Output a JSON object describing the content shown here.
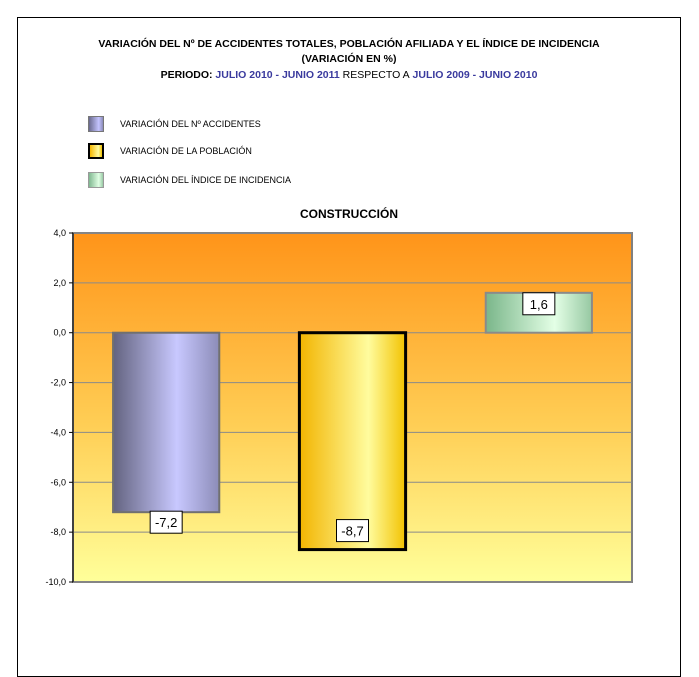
{
  "header": {
    "title_line1": "VARIACIÓN DEL Nº DE ACCIDENTES TOTALES, POBLACIÓN AFILIADA Y EL ÍNDICE DE INCIDENCIA",
    "title_line2": "(VARIACIÓN EN %)",
    "period_label": "PERIODO:",
    "period_current": "JULIO 2010 - JUNIO 2011",
    "period_connector": "RESPECTO A",
    "period_previous": "JULIO 2009 - JUNIO 2010"
  },
  "legend": [
    {
      "label": "VARIACIÓN DEL Nº ACCIDENTES",
      "color": "#a0a0e0"
    },
    {
      "label": "VARIACIÓN DE LA POBLACIÓN",
      "color": "#f5cf2a"
    },
    {
      "label": "VARIACIÓN DEL ÍNDICE DE  INCIDENCIA",
      "color": "#a8e0b0"
    }
  ],
  "chart_data": {
    "type": "bar",
    "title": "CONSTRUCCIÓN",
    "categories": [
      "VARIACIÓN DEL Nº ACCIDENTES",
      "VARIACIÓN DE LA POBLACIÓN",
      "VARIACIÓN DEL ÍNDICE DE  INCIDENCIA"
    ],
    "values": [
      -7.2,
      -8.7,
      1.6
    ],
    "value_labels": [
      "-7,2",
      "-8,7",
      "1,6"
    ],
    "ylim": [
      -10,
      4
    ],
    "yticks": [
      4,
      2,
      0,
      -2,
      -4,
      -6,
      -8,
      -10
    ],
    "ytick_labels": [
      "4,0",
      "2,0",
      "0,0",
      "-2,0",
      "-4,0",
      "-6,0",
      "-8,0",
      "-10,0"
    ],
    "grid": true,
    "legend_position": "top-left",
    "colors": {
      "background_top": "#ff9419",
      "background_bottom": "#ffff9a",
      "bar_accidents": "#a0a0e0",
      "bar_population": "#f5cf2a",
      "bar_incidence": "#a8e0b0"
    }
  }
}
